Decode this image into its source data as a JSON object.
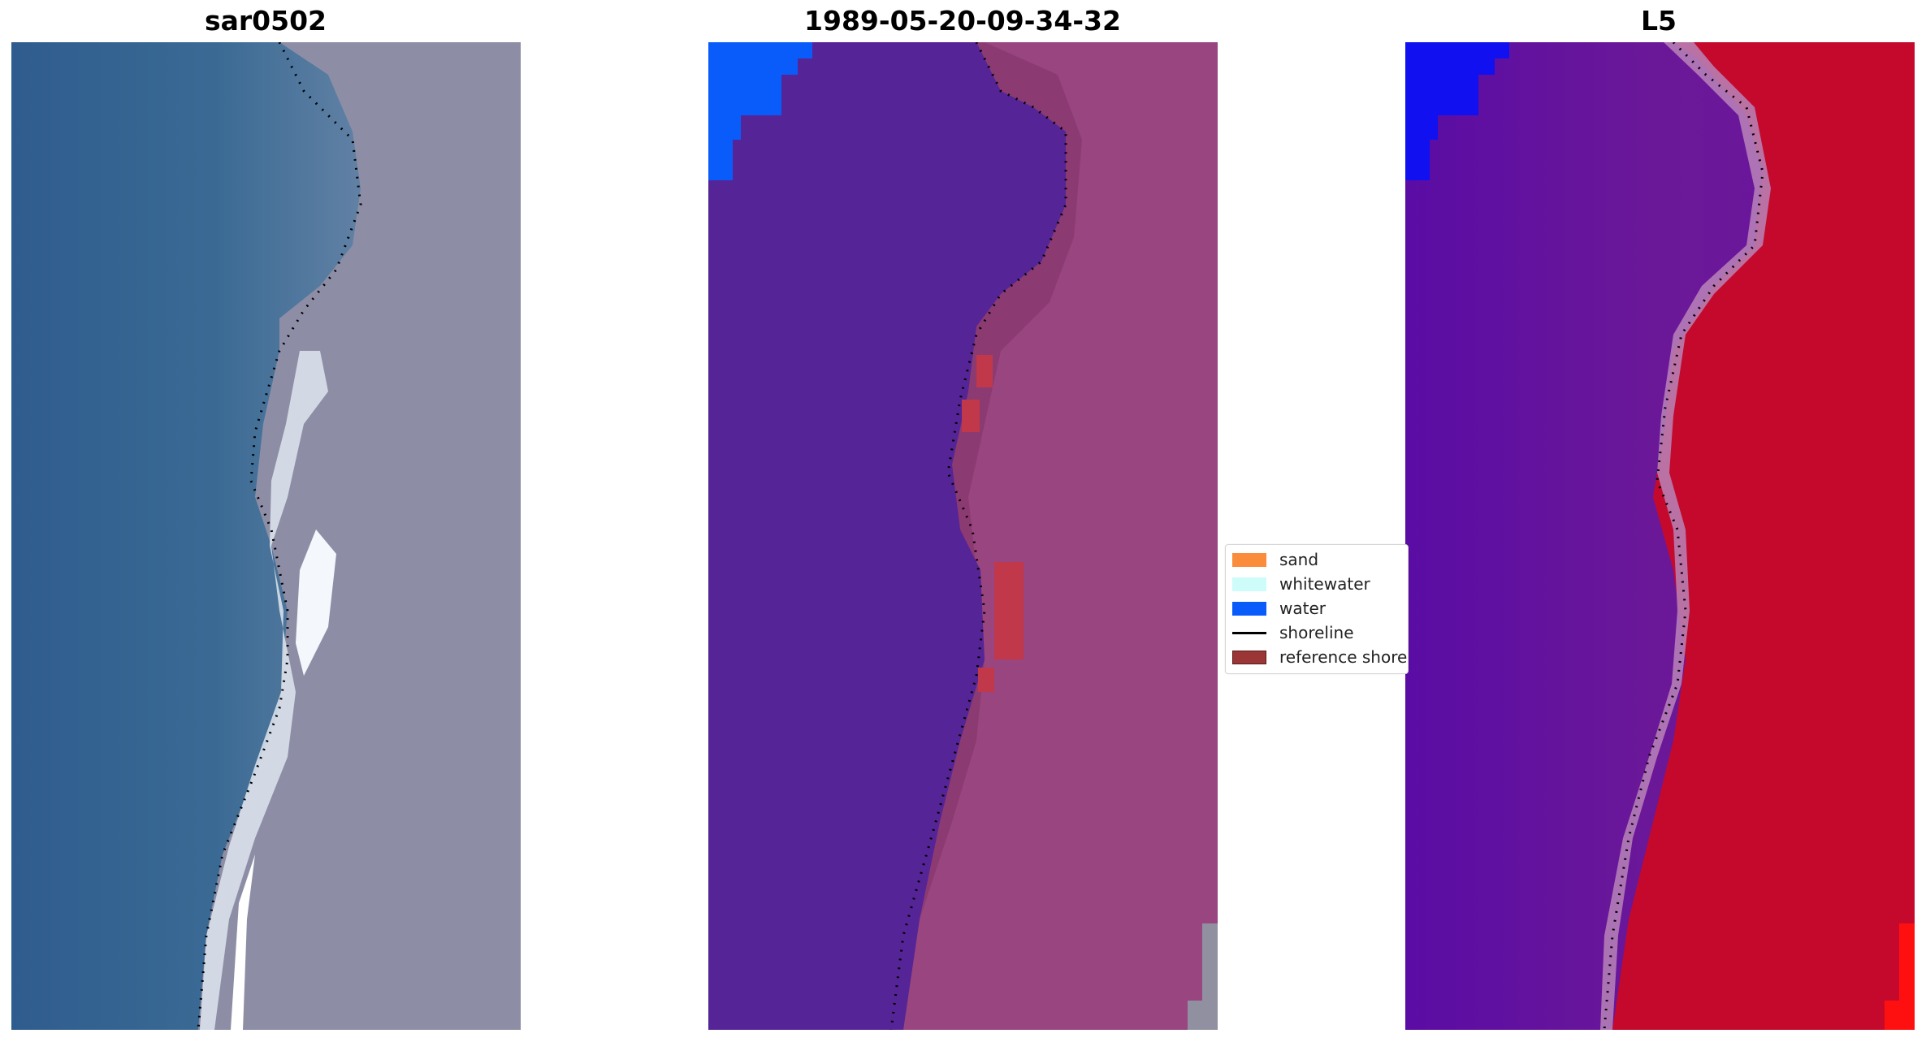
{
  "panels": [
    {
      "title": "sar0502"
    },
    {
      "title": "1989-05-20-09-34-32"
    },
    {
      "title": "L5"
    }
  ],
  "legend": {
    "items": [
      {
        "label": "sand",
        "color": "#fa8c3c",
        "kind": "patch"
      },
      {
        "label": "whitewater",
        "color": "#cdfcfa",
        "kind": "patch"
      },
      {
        "label": "water",
        "color": "#0a5cfa",
        "kind": "patch"
      },
      {
        "label": "shoreline",
        "color": "#000000",
        "kind": "line"
      },
      {
        "label": "reference shoreline",
        "color": "#9a3636",
        "kind": "patch"
      }
    ]
  },
  "colors": {
    "rgb_water": "#345f8c",
    "rgb_land": "#8a8fa8",
    "classified_water": "#552497",
    "classified_land": "#8c3a72",
    "classified_bright_water": "#0a5cfa",
    "mndwi_water": "#5e14a0",
    "mndwi_land": "#c4092d",
    "mndwi_bright": "#0a18f5",
    "shoreline_dots": "#000000"
  }
}
